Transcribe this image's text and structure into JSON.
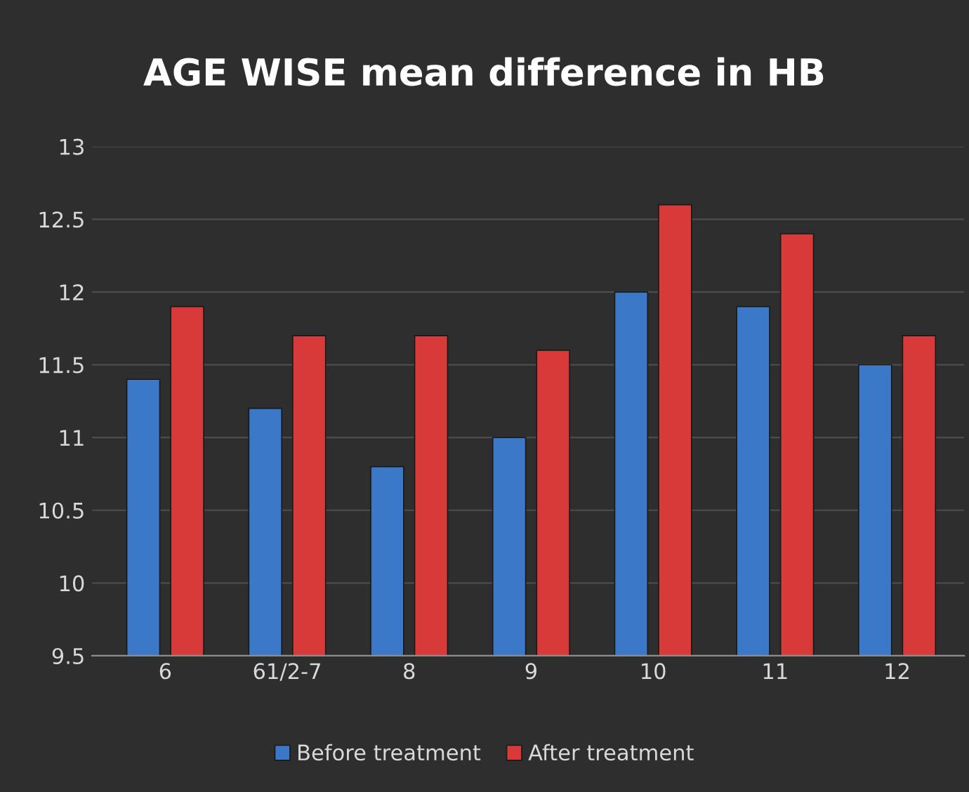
{
  "chart_data": {
    "type": "bar",
    "title": "AGE WISE mean difference in HB",
    "categories": [
      "6",
      "61/2-7",
      "8",
      "9",
      "10",
      "11",
      "12"
    ],
    "series": [
      {
        "name": "Before treatment",
        "color": "#3b78c8",
        "values": [
          11.4,
          11.2,
          10.8,
          11.0,
          12.0,
          11.9,
          11.5
        ]
      },
      {
        "name": "After treatment",
        "color": "#d83a3a",
        "values": [
          11.9,
          11.7,
          11.7,
          11.6,
          12.6,
          12.4,
          11.7
        ]
      }
    ],
    "ylim": [
      9.5,
      13
    ],
    "yticks": [
      9.5,
      10,
      10.5,
      11,
      11.5,
      12,
      12.5,
      13
    ],
    "grid": "y",
    "legend": "bottom"
  }
}
